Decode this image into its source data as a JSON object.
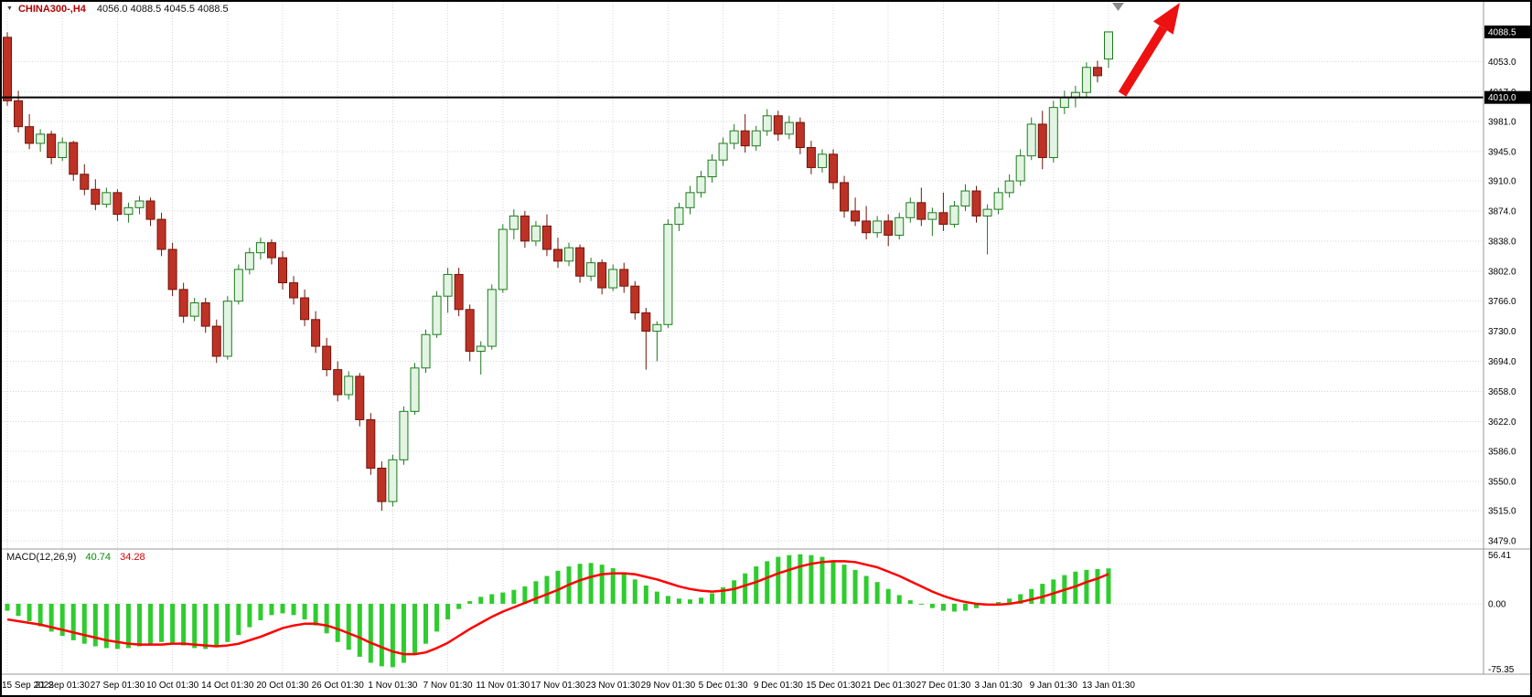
{
  "window": {
    "dropdown_icon": "▼",
    "symbol_label": "CHINA300-,H4",
    "ohlc_label": "4056.0 4088.5 4045.5 4088.5"
  },
  "colors": {
    "background": "#FFFFFF",
    "grid": "#D6D6D6",
    "bull_fill": "#E2F4E2",
    "bull_border": "#1E7A1E",
    "bear_fill": "#BE3226",
    "bear_border": "#701409",
    "hline": "#000000",
    "badge_bg": "#000000",
    "badge_text": "#FFFFFF",
    "macd_histogram": "#2ECC2E",
    "macd_signal": "#FF0000",
    "arrow": "#EE1111",
    "axis_text": "#000000",
    "separator": "#9A9A9A",
    "shift_marker": "#8C8C8C"
  },
  "chart_data": {
    "type": "candlestick",
    "title": "CHINA300-,H4",
    "symbol": "CHINA300-",
    "timeframe": "H4",
    "current_candle": {
      "open": 4056.0,
      "high": 4088.5,
      "low": 4045.5,
      "close": 4088.5
    },
    "y_axis": {
      "ticks": [
        4053.0,
        4017.0,
        3981.0,
        3945.0,
        3910.0,
        3874.0,
        3838.0,
        3802.0,
        3766.0,
        3730.0,
        3694.0,
        3658.0,
        3622.0,
        3586.0,
        3550.0,
        3515.0,
        3479.0
      ],
      "current_price": 4088.5,
      "hline": 4010.0
    },
    "x_label_every": 5,
    "x_labels": [
      "15 Sep 2022",
      "21 Sep 01:30",
      "27 Sep 01:30",
      "10 Oct 01:30",
      "14 Oct 01:30",
      "20 Oct 01:30",
      "26 Oct 01:30",
      "1 Nov 01:30",
      "7 Nov 01:30",
      "11 Nov 01:30",
      "17 Nov 01:30",
      "23 Nov 01:30",
      "29 Nov 01:30",
      "5 Dec 01:30",
      "9 Dec 01:30",
      "15 Dec 01:30",
      "21 Dec 01:30",
      "27 Dec 01:30",
      "3 Jan 01:30",
      "9 Jan 01:30",
      "13 Jan 01:30"
    ],
    "candles": [
      [
        4082,
        4088,
        4000,
        4006
      ],
      [
        4006,
        4018,
        3968,
        3975
      ],
      [
        3975,
        3990,
        3948,
        3955
      ],
      [
        3955,
        3972,
        3945,
        3966
      ],
      [
        3966,
        3970,
        3930,
        3938
      ],
      [
        3938,
        3962,
        3934,
        3956
      ],
      [
        3956,
        3958,
        3910,
        3918
      ],
      [
        3918,
        3930,
        3893,
        3900
      ],
      [
        3900,
        3912,
        3875,
        3882
      ],
      [
        3882,
        3902,
        3878,
        3896
      ],
      [
        3896,
        3900,
        3862,
        3870
      ],
      [
        3870,
        3884,
        3860,
        3878
      ],
      [
        3878,
        3892,
        3870,
        3886
      ],
      [
        3886,
        3890,
        3856,
        3864
      ],
      [
        3864,
        3872,
        3820,
        3828
      ],
      [
        3828,
        3836,
        3772,
        3780
      ],
      [
        3780,
        3788,
        3740,
        3748
      ],
      [
        3748,
        3770,
        3742,
        3764
      ],
      [
        3764,
        3770,
        3728,
        3736
      ],
      [
        3736,
        3744,
        3692,
        3700
      ],
      [
        3700,
        3772,
        3696,
        3766
      ],
      [
        3766,
        3810,
        3762,
        3804
      ],
      [
        3804,
        3830,
        3798,
        3824
      ],
      [
        3824,
        3842,
        3816,
        3836
      ],
      [
        3836,
        3840,
        3810,
        3818
      ],
      [
        3818,
        3826,
        3780,
        3788
      ],
      [
        3788,
        3796,
        3762,
        3770
      ],
      [
        3770,
        3780,
        3736,
        3744
      ],
      [
        3744,
        3754,
        3704,
        3712
      ],
      [
        3712,
        3722,
        3676,
        3684
      ],
      [
        3684,
        3694,
        3646,
        3654
      ],
      [
        3654,
        3682,
        3648,
        3676
      ],
      [
        3676,
        3680,
        3616,
        3624
      ],
      [
        3624,
        3632,
        3558,
        3566
      ],
      [
        3566,
        3574,
        3515,
        3526
      ],
      [
        3526,
        3582,
        3520,
        3576
      ],
      [
        3576,
        3640,
        3570,
        3634
      ],
      [
        3634,
        3692,
        3630,
        3686
      ],
      [
        3686,
        3732,
        3680,
        3726
      ],
      [
        3726,
        3778,
        3722,
        3772
      ],
      [
        3772,
        3806,
        3752,
        3798
      ],
      [
        3798,
        3806,
        3748,
        3756
      ],
      [
        3756,
        3762,
        3694,
        3706
      ],
      [
        3706,
        3718,
        3678,
        3712
      ],
      [
        3712,
        3786,
        3708,
        3780
      ],
      [
        3780,
        3858,
        3776,
        3852
      ],
      [
        3852,
        3876,
        3840,
        3868
      ],
      [
        3868,
        3874,
        3830,
        3838
      ],
      [
        3838,
        3862,
        3832,
        3856
      ],
      [
        3856,
        3870,
        3820,
        3828
      ],
      [
        3828,
        3842,
        3806,
        3814
      ],
      [
        3814,
        3836,
        3808,
        3830
      ],
      [
        3830,
        3834,
        3788,
        3796
      ],
      [
        3796,
        3818,
        3790,
        3812
      ],
      [
        3812,
        3816,
        3774,
        3782
      ],
      [
        3782,
        3810,
        3778,
        3804
      ],
      [
        3804,
        3812,
        3776,
        3784
      ],
      [
        3784,
        3790,
        3744,
        3752
      ],
      [
        3752,
        3758,
        3684,
        3730
      ],
      [
        3730,
        3742,
        3694,
        3738
      ],
      [
        3738,
        3864,
        3734,
        3858
      ],
      [
        3858,
        3884,
        3850,
        3878
      ],
      [
        3878,
        3904,
        3870,
        3896
      ],
      [
        3896,
        3922,
        3890,
        3915
      ],
      [
        3915,
        3942,
        3908,
        3935
      ],
      [
        3935,
        3962,
        3928,
        3955
      ],
      [
        3955,
        3978,
        3948,
        3970
      ],
      [
        3970,
        3990,
        3944,
        3952
      ],
      [
        3952,
        3976,
        3946,
        3970
      ],
      [
        3970,
        3996,
        3964,
        3988
      ],
      [
        3988,
        3994,
        3958,
        3966
      ],
      [
        3966,
        3988,
        3960,
        3980
      ],
      [
        3980,
        3986,
        3942,
        3950
      ],
      [
        3950,
        3958,
        3918,
        3926
      ],
      [
        3926,
        3948,
        3920,
        3942
      ],
      [
        3942,
        3948,
        3900,
        3908
      ],
      [
        3908,
        3916,
        3866,
        3874
      ],
      [
        3874,
        3890,
        3856,
        3862
      ],
      [
        3862,
        3880,
        3840,
        3848
      ],
      [
        3848,
        3868,
        3842,
        3862
      ],
      [
        3862,
        3870,
        3832,
        3845
      ],
      [
        3845,
        3872,
        3840,
        3866
      ],
      [
        3866,
        3890,
        3860,
        3884
      ],
      [
        3884,
        3902,
        3856,
        3864
      ],
      [
        3864,
        3878,
        3844,
        3872
      ],
      [
        3872,
        3896,
        3850,
        3858
      ],
      [
        3858,
        3886,
        3854,
        3880
      ],
      [
        3880,
        3906,
        3874,
        3898
      ],
      [
        3898,
        3904,
        3860,
        3868
      ],
      [
        3868,
        3882,
        3822,
        3876
      ],
      [
        3876,
        3902,
        3870,
        3896
      ],
      [
        3896,
        3918,
        3890,
        3910
      ],
      [
        3910,
        3948,
        3904,
        3940
      ],
      [
        3940,
        3986,
        3935,
        3978
      ],
      [
        3978,
        3994,
        3924,
        3938
      ],
      [
        3938,
        4006,
        3932,
        3998
      ],
      [
        3998,
        4018,
        3990,
        4010
      ],
      [
        4010,
        4024,
        3998,
        4016
      ],
      [
        4016,
        4052,
        4010,
        4046
      ],
      [
        4046,
        4054,
        4028,
        4036
      ],
      [
        4056,
        4088.5,
        4045.5,
        4088.5
      ]
    ],
    "indicator": {
      "name": "MACD(12,26,9)",
      "macd_value": 40.74,
      "signal_value": 34.28,
      "macd_value_text": "40.74",
      "signal_value_text": "34.28",
      "y_ticks": [
        56.41,
        0.0,
        -75.35
      ],
      "histogram": [
        -8,
        -14,
        -20,
        -26,
        -32,
        -37,
        -42,
        -46,
        -49,
        -51,
        -52,
        -51,
        -49,
        -46,
        -44,
        -45,
        -48,
        -51,
        -52,
        -50,
        -44,
        -36,
        -27,
        -19,
        -13,
        -11,
        -13,
        -18,
        -25,
        -34,
        -44,
        -53,
        -61,
        -68,
        -72,
        -73,
        -68,
        -58,
        -46,
        -32,
        -18,
        -6,
        3,
        8,
        11,
        13,
        16,
        20,
        26,
        32,
        38,
        43,
        46,
        47,
        45,
        41,
        35,
        28,
        21,
        14,
        9,
        6,
        5,
        7,
        12,
        19,
        27,
        35,
        43,
        49,
        54,
        56,
        57,
        56,
        54,
        50,
        45,
        39,
        32,
        25,
        17,
        10,
        4,
        -1,
        -5,
        -8,
        -9,
        -8,
        -5,
        -2,
        2,
        6,
        11,
        17,
        23,
        28,
        33,
        37,
        39,
        40,
        40.74
      ],
      "signal": [
        -18,
        -20,
        -22,
        -24,
        -27,
        -30,
        -33,
        -36,
        -39,
        -42,
        -44,
        -46,
        -47,
        -47,
        -47,
        -46,
        -46,
        -47,
        -48,
        -49,
        -48,
        -46,
        -42,
        -38,
        -33,
        -28,
        -25,
        -23,
        -23,
        -25,
        -29,
        -34,
        -39,
        -45,
        -50,
        -55,
        -58,
        -58,
        -56,
        -51,
        -45,
        -37,
        -29,
        -22,
        -15,
        -9,
        -4,
        1,
        6,
        11,
        16,
        22,
        27,
        31,
        34,
        35,
        35,
        34,
        31,
        28,
        24,
        20,
        17,
        15,
        14,
        15,
        17,
        21,
        25,
        30,
        35,
        39,
        43,
        46,
        48,
        49,
        49,
        48,
        45,
        42,
        37,
        32,
        26,
        20,
        14,
        9,
        5,
        2,
        0,
        -1,
        -1,
        0,
        2,
        5,
        8,
        12,
        16,
        20,
        25,
        29,
        34.28
      ]
    }
  }
}
